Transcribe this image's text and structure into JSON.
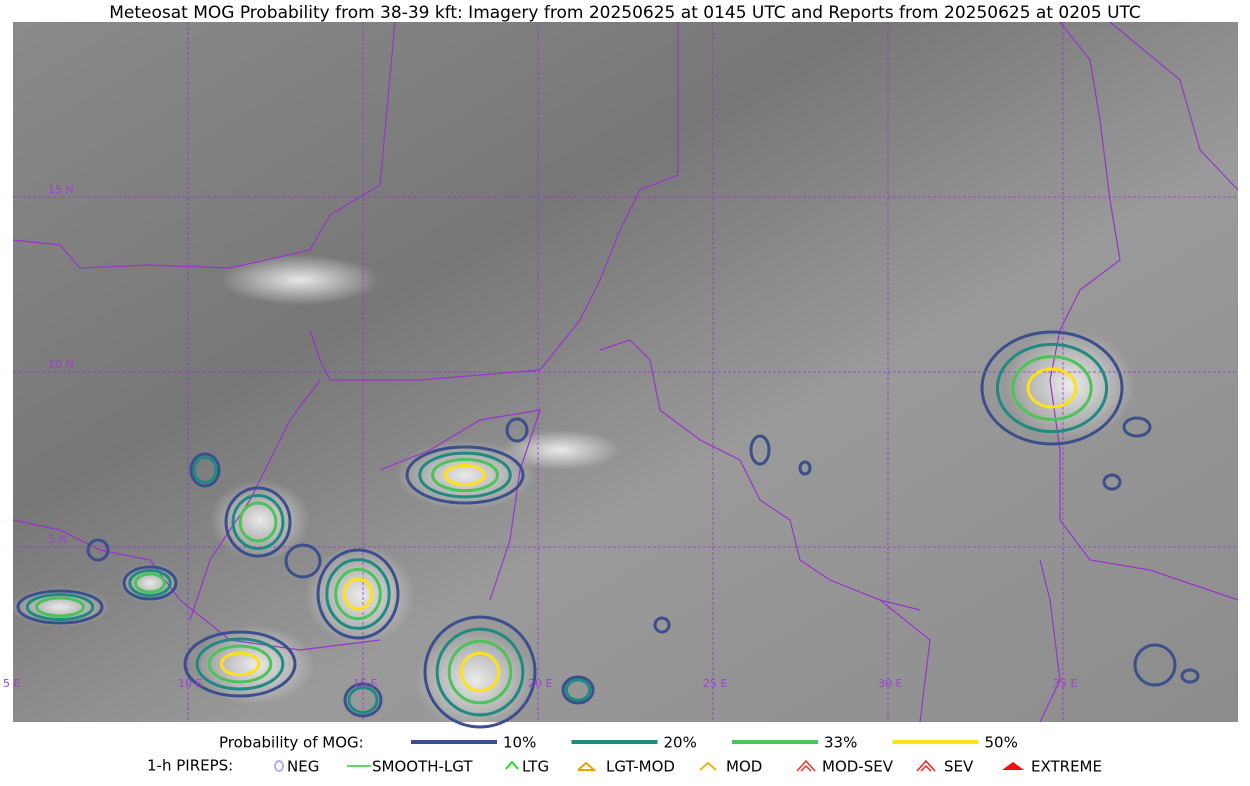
{
  "title": "Meteosat MOG Probability from 38-39 kft: Imagery from 20250625 at 0145 UTC and Reports from 20250625 at 0205 UTC",
  "map": {
    "lat_labels": [
      "15 N",
      "10 N",
      "5 N"
    ],
    "lon_labels": [
      "5 E",
      "10 E",
      "15 E",
      "20 E",
      "25 E",
      "30 E",
      "35 E"
    ]
  },
  "legend": {
    "probability": {
      "label": "Probability of MOG:",
      "levels": [
        {
          "label": "10%",
          "color": "#3b4f8c"
        },
        {
          "label": "20%",
          "color": "#1f8a80"
        },
        {
          "label": "33%",
          "color": "#4cc35a"
        },
        {
          "label": "50%",
          "color": "#ffe119"
        }
      ]
    },
    "pireps": {
      "label": "1-h PIREPS:",
      "items": [
        {
          "label": "NEG",
          "color": "#b0b0f0"
        },
        {
          "label": "SMOOTH-LGT",
          "color": "#33cc33"
        },
        {
          "label": "LTG",
          "color": "#22dd22"
        },
        {
          "label": "LGT-MOD",
          "color": "#f0a000"
        },
        {
          "label": "MOD",
          "color": "#f0b020"
        },
        {
          "label": "MOD-SEV",
          "color": "#ee3333"
        },
        {
          "label": "SEV",
          "color": "#ee2222"
        },
        {
          "label": "EXTREME",
          "color": "#ee1111"
        }
      ]
    }
  }
}
